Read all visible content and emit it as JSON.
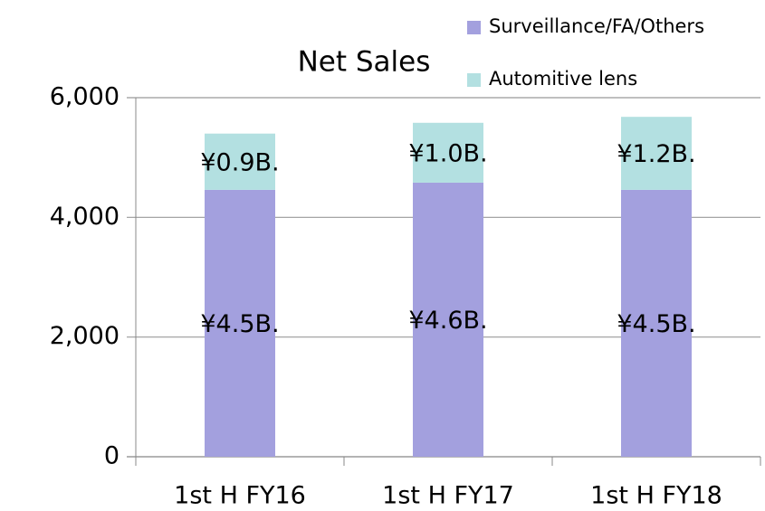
{
  "chart_data": {
    "type": "stacked_bar",
    "title": "Net Sales",
    "categories": [
      "1st H FY16",
      "1st H FY17",
      "1st H FY18"
    ],
    "series": [
      {
        "name": "Surveillance/FA/Others",
        "color": "#a3a0de",
        "values": [
          4460,
          4580,
          4460
        ],
        "value_labels": [
          "¥4.5B.",
          "¥4.6B.",
          "¥4.5B."
        ]
      },
      {
        "name": "Automitive lens",
        "color": "#b3e0e1",
        "values": [
          940,
          1000,
          1220
        ],
        "value_labels": [
          "¥0.9B.",
          "¥1.0B.",
          "¥1.2B."
        ]
      }
    ],
    "ylim": [
      0,
      6000
    ],
    "yticks": [
      0,
      {
        "value": 2000,
        "label": "2,000"
      },
      {
        "value": 4000,
        "label": "4,000"
      },
      {
        "value": 6000,
        "label": "6,000"
      }
    ],
    "grid": true,
    "legend": "top-right"
  }
}
